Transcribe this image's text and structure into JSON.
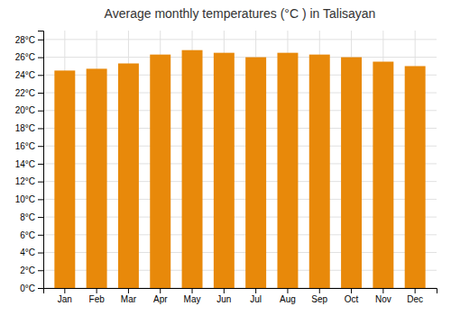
{
  "chart_data": {
    "type": "bar",
    "title": "Average monthly temperatures (°C ) in Talisayan",
    "categories": [
      "Jan",
      "Feb",
      "Mar",
      "Apr",
      "May",
      "Jun",
      "Jul",
      "Aug",
      "Sep",
      "Oct",
      "Nov",
      "Dec"
    ],
    "values": [
      24.5,
      24.7,
      25.3,
      26.3,
      26.8,
      26.5,
      26.0,
      26.5,
      26.3,
      26.0,
      25.5,
      25.0
    ],
    "color": "#E8890A",
    "ylim": [
      0,
      29
    ],
    "yticks": [
      {
        "value": 0,
        "label": "0°C"
      },
      {
        "value": 2,
        "label": "2°C"
      },
      {
        "value": 4,
        "label": "4°C"
      },
      {
        "value": 6,
        "label": "6°C"
      },
      {
        "value": 8,
        "label": "8°C"
      },
      {
        "value": 10,
        "label": "10°C"
      },
      {
        "value": 12,
        "label": "12°C"
      },
      {
        "value": 14,
        "label": "14°C"
      },
      {
        "value": 16,
        "label": "16°C"
      },
      {
        "value": 18,
        "label": "18°C"
      },
      {
        "value": 20,
        "label": "20°C"
      },
      {
        "value": 22,
        "label": "22°C"
      },
      {
        "value": 24,
        "label": "24°C"
      },
      {
        "value": 26,
        "label": "26°C"
      },
      {
        "value": 28,
        "label": "28°C"
      }
    ],
    "grid": true
  }
}
